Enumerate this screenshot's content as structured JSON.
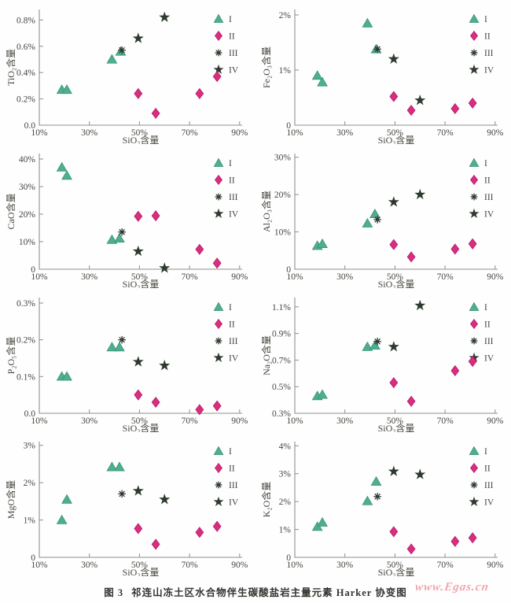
{
  "figure": {
    "caption_label": "图 3",
    "caption_text": "祁连山冻土区水合物伴生碳酸盐岩主量元素 Harker 协变图",
    "watermark": "www.Egas.cn"
  },
  "colors": {
    "axis": "#8a938a",
    "tick_text": "#45453f",
    "legend_text": "#6a6a64",
    "caption": "#33332f",
    "watermark": "#f2a6ae",
    "series": {
      "I": {
        "fill": "#4fae90",
        "edge": "#379478"
      },
      "II": {
        "fill": "#d72e80",
        "edge": "#b81b66"
      },
      "III": {
        "fill": "#2e3a2e",
        "edge": "#2e3a2e"
      },
      "IV": {
        "fill": "#2e3a2e",
        "edge": "#2e3a2e"
      }
    }
  },
  "legend": {
    "position": "top-right",
    "items": [
      {
        "label": "I",
        "marker": "triangle"
      },
      {
        "label": "II",
        "marker": "diamond"
      },
      {
        "label": "III",
        "marker": "asterisk"
      },
      {
        "label": "IV",
        "marker": "star"
      }
    ]
  },
  "chart_data": [
    {
      "type": "scatter",
      "title": "",
      "xlabel": "SiO₂含量",
      "ylabel": "TiO₂含量",
      "xlim": [
        10,
        91
      ],
      "ylim": [
        0,
        0.88
      ],
      "grid": false,
      "xticks": {
        "values": [
          10,
          30,
          50,
          70,
          90
        ],
        "labels": [
          "10%",
          "30%",
          "50%",
          "70%",
          "90%"
        ]
      },
      "yticks": {
        "values": [
          0,
          0.2,
          0.4,
          0.6,
          0.8
        ],
        "labels": [
          "0.0",
          "0.2%",
          "0.4%",
          "0.6%",
          "0.8%"
        ]
      },
      "series": [
        {
          "name": "I",
          "marker": "triangle",
          "points": [
            [
              19,
              0.27
            ],
            [
              21,
              0.27
            ],
            [
              39,
              0.5
            ],
            [
              42.5,
              0.56
            ]
          ]
        },
        {
          "name": "II",
          "marker": "diamond",
          "points": [
            [
              49.5,
              0.24
            ],
            [
              56.5,
              0.09
            ],
            [
              74,
              0.24
            ],
            [
              81,
              0.37
            ]
          ]
        },
        {
          "name": "III",
          "marker": "asterisk",
          "points": [
            [
              43,
              0.57
            ]
          ]
        },
        {
          "name": "IV",
          "marker": "star",
          "points": [
            [
              49.5,
              0.66
            ],
            [
              60,
              0.82
            ]
          ]
        }
      ]
    },
    {
      "type": "scatter",
      "title": "",
      "xlabel": "SiO₂含量",
      "ylabel": "Fe₂O₃含量",
      "xlim": [
        10,
        91
      ],
      "ylim": [
        0,
        2.1
      ],
      "grid": false,
      "xticks": {
        "values": [
          10,
          30,
          50,
          70,
          90
        ],
        "labels": [
          "10%",
          "30%",
          "50%",
          "70%",
          "90%"
        ]
      },
      "yticks": {
        "values": [
          0,
          1,
          2
        ],
        "labels": [
          "0",
          "1%",
          "2%"
        ]
      },
      "series": [
        {
          "name": "I",
          "marker": "triangle",
          "points": [
            [
              19,
              0.9
            ],
            [
              21,
              0.78
            ],
            [
              39,
              1.85
            ],
            [
              42.5,
              1.38
            ]
          ]
        },
        {
          "name": "II",
          "marker": "diamond",
          "points": [
            [
              49.5,
              0.52
            ],
            [
              56.5,
              0.27
            ],
            [
              74,
              0.3
            ],
            [
              81,
              0.4
            ]
          ]
        },
        {
          "name": "III",
          "marker": "asterisk",
          "points": [
            [
              43,
              1.38
            ]
          ]
        },
        {
          "name": "IV",
          "marker": "star",
          "points": [
            [
              49.5,
              1.2
            ],
            [
              60,
              0.45
            ]
          ]
        }
      ]
    },
    {
      "type": "scatter",
      "title": "",
      "xlabel": "SiO₂含量",
      "ylabel": "CaO含量",
      "xlim": [
        10,
        91
      ],
      "ylim": [
        0,
        42
      ],
      "grid": false,
      "xticks": {
        "values": [
          10,
          30,
          50,
          70,
          90
        ],
        "labels": [
          "10%",
          "30%",
          "50%",
          "70%",
          "90%"
        ]
      },
      "yticks": {
        "values": [
          0,
          10,
          20,
          30,
          40
        ],
        "labels": [
          "0",
          "10%",
          "20%",
          "30%",
          "40%"
        ]
      },
      "series": [
        {
          "name": "I",
          "marker": "triangle",
          "points": [
            [
              19,
              37
            ],
            [
              21,
              34
            ],
            [
              39,
              10.7
            ],
            [
              42,
              11.2
            ]
          ]
        },
        {
          "name": "II",
          "marker": "diamond",
          "points": [
            [
              49.5,
              19.2
            ],
            [
              56.5,
              19.4
            ],
            [
              74,
              7.2
            ],
            [
              81,
              2.2
            ]
          ]
        },
        {
          "name": "III",
          "marker": "asterisk",
          "points": [
            [
              43,
              13.5
            ]
          ]
        },
        {
          "name": "IV",
          "marker": "star",
          "points": [
            [
              49.5,
              6.5
            ],
            [
              60,
              0.4
            ]
          ]
        }
      ]
    },
    {
      "type": "scatter",
      "title": "",
      "xlabel": "SiO₂含量",
      "ylabel": "Al₂O₃含量",
      "xlim": [
        10,
        91
      ],
      "ylim": [
        0,
        31
      ],
      "grid": false,
      "xticks": {
        "values": [
          10,
          30,
          50,
          70,
          90
        ],
        "labels": [
          "10%",
          "30%",
          "50%",
          "70%",
          "90%"
        ]
      },
      "yticks": {
        "values": [
          0,
          10,
          20,
          30
        ],
        "labels": [
          "0",
          "10%",
          "20%",
          "30%"
        ]
      },
      "series": [
        {
          "name": "I",
          "marker": "triangle",
          "points": [
            [
              19,
              6.3
            ],
            [
              21,
              6.8
            ],
            [
              39,
              12.3
            ],
            [
              42,
              14.8
            ]
          ]
        },
        {
          "name": "II",
          "marker": "diamond",
          "points": [
            [
              49.5,
              6.6
            ],
            [
              56.5,
              3.3
            ],
            [
              74,
              5.4
            ],
            [
              81,
              6.8
            ]
          ]
        },
        {
          "name": "III",
          "marker": "asterisk",
          "points": [
            [
              43,
              13.3
            ]
          ]
        },
        {
          "name": "IV",
          "marker": "star",
          "points": [
            [
              49.5,
              18
            ],
            [
              60,
              20
            ]
          ]
        }
      ]
    },
    {
      "type": "scatter",
      "title": "",
      "xlabel": "SiO₂含量",
      "ylabel": "P₂O₅含量",
      "xlim": [
        10,
        91
      ],
      "ylim": [
        0,
        0.315
      ],
      "grid": false,
      "xticks": {
        "values": [
          10,
          30,
          50,
          70,
          90
        ],
        "labels": [
          "10%",
          "30%",
          "50%",
          "70%",
          "90%"
        ]
      },
      "yticks": {
        "values": [
          0,
          0.1,
          0.2,
          0.3
        ],
        "labels": [
          "0.0",
          "0.1%",
          "0.2%",
          "0.3%"
        ]
      },
      "series": [
        {
          "name": "I",
          "marker": "triangle",
          "points": [
            [
              19,
              0.1
            ],
            [
              21,
              0.1
            ],
            [
              39,
              0.18
            ],
            [
              42,
              0.18
            ]
          ]
        },
        {
          "name": "II",
          "marker": "diamond",
          "points": [
            [
              49.5,
              0.05
            ],
            [
              56.5,
              0.03
            ],
            [
              74,
              0.01
            ],
            [
              81,
              0.02
            ]
          ]
        },
        {
          "name": "III",
          "marker": "asterisk",
          "points": [
            [
              43,
              0.2
            ]
          ]
        },
        {
          "name": "IV",
          "marker": "star",
          "points": [
            [
              49.5,
              0.14
            ],
            [
              60,
              0.13
            ]
          ]
        }
      ]
    },
    {
      "type": "scatter",
      "title": "",
      "xlabel": "SiO₂含量",
      "ylabel": "Na₂O含量",
      "xlim": [
        10,
        91
      ],
      "ylim": [
        0.3,
        1.17
      ],
      "grid": false,
      "xticks": {
        "values": [
          10,
          30,
          50,
          70,
          90
        ],
        "labels": [
          "10%",
          "30%",
          "50%",
          "70%",
          "90%"
        ]
      },
      "yticks": {
        "values": [
          0.3,
          0.5,
          0.7,
          0.9,
          1.1
        ],
        "labels": [
          "0.3%",
          "0.5%",
          "0.7%",
          "0.9%",
          "1.1%"
        ]
      },
      "series": [
        {
          "name": "I",
          "marker": "triangle",
          "points": [
            [
              19,
              0.43
            ],
            [
              21,
              0.44
            ],
            [
              39,
              0.8
            ],
            [
              42,
              0.81
            ]
          ]
        },
        {
          "name": "II",
          "marker": "diamond",
          "points": [
            [
              49.5,
              0.53
            ],
            [
              56.5,
              0.39
            ],
            [
              74,
              0.62
            ],
            [
              81,
              0.69
            ]
          ]
        },
        {
          "name": "III",
          "marker": "asterisk",
          "points": [
            [
              43,
              0.84
            ]
          ]
        },
        {
          "name": "IV",
          "marker": "star",
          "points": [
            [
              49.5,
              0.8
            ],
            [
              60,
              1.11
            ]
          ]
        }
      ]
    },
    {
      "type": "scatter",
      "title": "",
      "xlabel": "SiO₂含量",
      "ylabel": "MgO含量",
      "xlim": [
        10,
        91
      ],
      "ylim": [
        0,
        3.1
      ],
      "grid": false,
      "xticks": {
        "values": [
          10,
          30,
          50,
          70,
          90
        ],
        "labels": [
          "10%",
          "30%",
          "50%",
          "70%",
          "90%"
        ]
      },
      "yticks": {
        "values": [
          0,
          1,
          2,
          3
        ],
        "labels": [
          "0",
          "1%",
          "2%",
          "3%"
        ]
      },
      "series": [
        {
          "name": "I",
          "marker": "triangle",
          "points": [
            [
              19,
              1.0
            ],
            [
              21,
              1.55
            ],
            [
              39,
              2.42
            ],
            [
              42,
              2.42
            ]
          ]
        },
        {
          "name": "II",
          "marker": "diamond",
          "points": [
            [
              49.5,
              0.77
            ],
            [
              56.5,
              0.35
            ],
            [
              74,
              0.67
            ],
            [
              81,
              0.83
            ]
          ]
        },
        {
          "name": "III",
          "marker": "asterisk",
          "points": [
            [
              43,
              1.7
            ]
          ]
        },
        {
          "name": "IV",
          "marker": "star",
          "points": [
            [
              49.5,
              1.78
            ],
            [
              60,
              1.55
            ]
          ]
        }
      ]
    },
    {
      "type": "scatter",
      "title": "",
      "xlabel": "SiO₂含量",
      "ylabel": "K₂O含量",
      "xlim": [
        10,
        91
      ],
      "ylim": [
        0,
        4.15
      ],
      "grid": false,
      "xticks": {
        "values": [
          10,
          30,
          50,
          70,
          90
        ],
        "labels": [
          "10%",
          "30%",
          "50%",
          "70%",
          "90%"
        ]
      },
      "yticks": {
        "values": [
          0,
          1,
          2,
          3,
          4
        ],
        "labels": [
          "0",
          "1%",
          "2%",
          "3%",
          "4%"
        ]
      },
      "series": [
        {
          "name": "I",
          "marker": "triangle",
          "points": [
            [
              19,
              1.1
            ],
            [
              21,
              1.25
            ],
            [
              39,
              2.02
            ],
            [
              42.5,
              2.72
            ]
          ]
        },
        {
          "name": "II",
          "marker": "diamond",
          "points": [
            [
              49.5,
              0.92
            ],
            [
              56.5,
              0.3
            ],
            [
              74,
              0.57
            ],
            [
              81,
              0.7
            ]
          ]
        },
        {
          "name": "III",
          "marker": "asterisk",
          "points": [
            [
              43,
              2.18
            ]
          ]
        },
        {
          "name": "IV",
          "marker": "star",
          "points": [
            [
              49.5,
              3.08
            ],
            [
              60,
              2.97
            ]
          ]
        }
      ]
    }
  ]
}
